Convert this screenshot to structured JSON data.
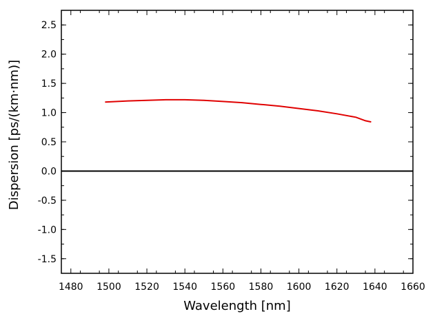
{
  "chart_data": {
    "type": "line",
    "xlabel": "Wavelength [nm]",
    "ylabel": "Dispersion [ps/(km·nm)]",
    "xlim": [
      1475,
      1660
    ],
    "ylim": [
      -1.75,
      2.75
    ],
    "x_ticks": [
      1480,
      1500,
      1520,
      1540,
      1560,
      1580,
      1600,
      1620,
      1640,
      1660
    ],
    "y_ticks": [
      -1.5,
      -1.0,
      -0.5,
      0.0,
      0.5,
      1.0,
      1.5,
      2.0,
      2.5
    ],
    "x_tick_labels": [
      "1480",
      "1500",
      "1520",
      "1540",
      "1560",
      "1580",
      "1600",
      "1620",
      "1640",
      "1660"
    ],
    "y_tick_labels": [
      "-1.5",
      "-1.0",
      "-0.5",
      "0.0",
      "0.5",
      "1.0",
      "1.5",
      "2.0",
      "2.5"
    ],
    "reference_line": {
      "y": 0.0,
      "color": "#000000"
    },
    "grid": false,
    "series": [
      {
        "color": "#e00000",
        "x": [
          1498,
          1510,
          1520,
          1530,
          1540,
          1550,
          1560,
          1570,
          1580,
          1590,
          1600,
          1610,
          1620,
          1630,
          1635,
          1638
        ],
        "y": [
          1.18,
          1.2,
          1.21,
          1.22,
          1.22,
          1.21,
          1.19,
          1.17,
          1.14,
          1.11,
          1.07,
          1.03,
          0.98,
          0.92,
          0.86,
          0.84
        ]
      }
    ]
  }
}
